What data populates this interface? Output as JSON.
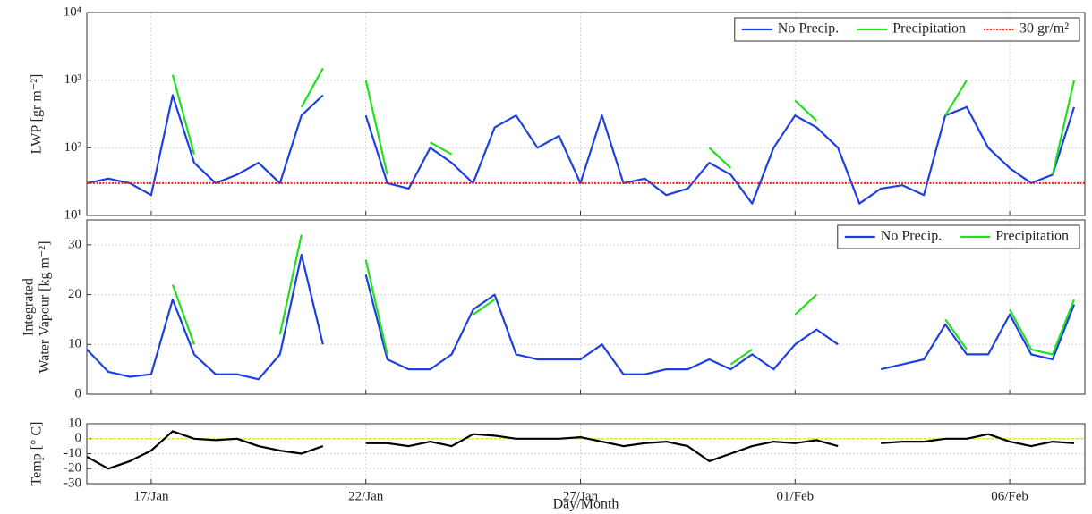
{
  "chart_data": [
    {
      "type": "line",
      "ylabel": "LWP [gr m⁻²]",
      "ylog": true,
      "grid": true,
      "legend": "upper-right",
      "xlim": [
        15.5,
        38.75
      ],
      "xticks": [
        17,
        22,
        27,
        32,
        37
      ],
      "ylim": [
        10,
        10000
      ],
      "yticks": [
        {
          "value": 10,
          "label": "10¹"
        },
        {
          "value": 100,
          "label": "10²"
        },
        {
          "value": 1000,
          "label": "10³"
        },
        {
          "value": 10000,
          "label": "10⁴"
        }
      ],
      "threshold": {
        "value": 30,
        "name": "30 gr/m²",
        "color": "#e8211b"
      },
      "x": [
        15.5,
        16,
        16.5,
        17,
        17.5,
        18,
        18.5,
        19,
        19.5,
        20,
        20.5,
        21,
        21.5,
        22,
        22.5,
        23,
        23.5,
        24,
        24.5,
        25,
        25.5,
        26,
        26.5,
        27,
        27.5,
        28,
        28.5,
        29,
        29.5,
        30,
        30.5,
        31,
        31.5,
        32,
        32.5,
        33,
        33.5,
        34,
        34.5,
        35,
        35.5,
        36,
        36.5,
        37,
        37.5,
        38,
        38.5
      ],
      "series": [
        {
          "name": "No Precip.",
          "color": "#1f3fe0",
          "values": [
            30,
            35,
            30,
            20,
            600,
            60,
            30,
            40,
            60,
            30,
            300,
            600,
            null,
            300,
            30,
            25,
            100,
            60,
            30,
            200,
            300,
            100,
            150,
            30,
            300,
            30,
            35,
            20,
            25,
            60,
            40,
            15,
            100,
            300,
            200,
            100,
            15,
            25,
            28,
            20,
            300,
            400,
            100,
            50,
            30,
            40,
            400
          ]
        },
        {
          "name": "Precipitation",
          "color": "#22e01e",
          "values": [
            null,
            null,
            null,
            null,
            1200,
            80,
            null,
            null,
            null,
            null,
            400,
            1500,
            null,
            1000,
            40,
            null,
            120,
            80,
            null,
            null,
            null,
            null,
            null,
            null,
            null,
            null,
            null,
            null,
            null,
            100,
            50,
            null,
            null,
            500,
            250,
            null,
            null,
            null,
            null,
            null,
            300,
            1000,
            null,
            null,
            null,
            40,
            1000
          ]
        }
      ]
    },
    {
      "type": "line",
      "ylabel": [
        "Integrated",
        "Water Vapour [kg m⁻²]"
      ],
      "grid": true,
      "legend": "upper-right",
      "xlim": [
        15.5,
        38.75
      ],
      "xticks": [
        17,
        22,
        27,
        32,
        37
      ],
      "ylim": [
        0,
        35
      ],
      "yticks": [
        0,
        10,
        20,
        30
      ],
      "x": [
        15.5,
        16,
        16.5,
        17,
        17.5,
        18,
        18.5,
        19,
        19.5,
        20,
        20.5,
        21,
        21.5,
        22,
        22.5,
        23,
        23.5,
        24,
        24.5,
        25,
        25.5,
        26,
        26.5,
        27,
        27.5,
        28,
        28.5,
        29,
        29.5,
        30,
        30.5,
        31,
        31.5,
        32,
        32.5,
        33,
        33.5,
        34,
        34.5,
        35,
        35.5,
        36,
        36.5,
        37,
        37.5,
        38,
        38.5
      ],
      "series": [
        {
          "name": "No Precip.",
          "color": "#1f3fe0",
          "values": [
            9,
            4.5,
            3.5,
            4,
            19,
            8,
            4,
            4,
            3,
            8,
            28,
            10,
            null,
            24,
            7,
            5,
            5,
            8,
            17,
            20,
            8,
            7,
            7,
            7,
            10,
            4,
            4,
            5,
            5,
            7,
            5,
            8,
            5,
            10,
            13,
            10,
            null,
            5,
            6,
            7,
            14,
            8,
            8,
            16,
            8,
            7,
            18
          ]
        },
        {
          "name": "Precipitation",
          "color": "#22e01e",
          "values": [
            null,
            null,
            null,
            null,
            22,
            10,
            null,
            null,
            null,
            12,
            32,
            null,
            null,
            27,
            8,
            null,
            null,
            null,
            16,
            19,
            null,
            null,
            null,
            null,
            null,
            null,
            null,
            null,
            null,
            null,
            6,
            9,
            null,
            16,
            20,
            null,
            null,
            null,
            null,
            null,
            15,
            9,
            null,
            17,
            9,
            8,
            19
          ]
        }
      ]
    },
    {
      "type": "line",
      "ylabel": "Temp [° C]",
      "xlabel": "Day/Month",
      "grid": true,
      "xlim": [
        15.5,
        38.75
      ],
      "xticks": [
        {
          "value": 17,
          "label": "17/Jan"
        },
        {
          "value": 22,
          "label": "22/Jan"
        },
        {
          "value": 27,
          "label": "27/Jan"
        },
        {
          "value": 32,
          "label": "01/Feb"
        },
        {
          "value": 37,
          "label": "06/Feb"
        }
      ],
      "ylim": [
        -30,
        10
      ],
      "yticks": [
        -30,
        -20,
        -10,
        0,
        10
      ],
      "refline": {
        "value": 0,
        "color": "#f2e21b"
      },
      "x": [
        15.5,
        16,
        16.5,
        17,
        17.5,
        18,
        18.5,
        19,
        19.5,
        20,
        20.5,
        21,
        21.5,
        22,
        22.5,
        23,
        23.5,
        24,
        24.5,
        25,
        25.5,
        26,
        26.5,
        27,
        27.5,
        28,
        28.5,
        29,
        29.5,
        30,
        30.5,
        31,
        31.5,
        32,
        32.5,
        33,
        33.5,
        34,
        34.5,
        35,
        35.5,
        36,
        36.5,
        37,
        37.5,
        38,
        38.5
      ],
      "series": [
        {
          "color": "#000000",
          "values": [
            -12,
            -20,
            -15,
            -8,
            5,
            0,
            -1,
            0,
            -5,
            -8,
            -10,
            -5,
            null,
            -3,
            -3,
            -5,
            -2,
            -5,
            3,
            2,
            0,
            0,
            0,
            1,
            -2,
            -5,
            -3,
            -2,
            -5,
            -15,
            -10,
            -5,
            -2,
            -3,
            -1,
            -5,
            null,
            -3,
            -2,
            -2,
            0,
            0,
            3,
            -2,
            -5,
            -2,
            -3
          ]
        }
      ]
    }
  ]
}
